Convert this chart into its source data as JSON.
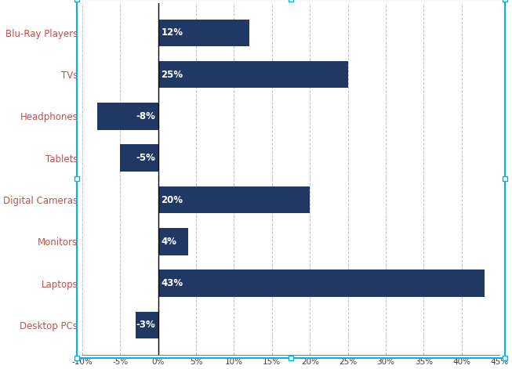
{
  "categories": [
    "Blu-Ray Players",
    "TVs",
    "Headphones",
    "Tablets",
    "Digital Cameras",
    "Monitors",
    "Laptops",
    "Desktop PCs"
  ],
  "values": [
    12,
    25,
    -8,
    -5,
    20,
    4,
    43,
    -3
  ],
  "bar_color": "#1F3864",
  "label_color": "#FFFFFF",
  "category_label_color": "#C0504D",
  "xlim": [
    -10,
    45
  ],
  "xticks": [
    -10,
    -5,
    0,
    5,
    10,
    15,
    20,
    25,
    30,
    35,
    40,
    45
  ],
  "xtick_labels": [
    "-10%",
    "-5%",
    "0%",
    "5%",
    "10%",
    "15%",
    "20%",
    "25%",
    "30%",
    "35%",
    "40%",
    "45%"
  ],
  "grid_color": "#C0C0C0",
  "border_color": "#00B0F0",
  "background_color": "#FFFFFF",
  "bar_height": 0.65,
  "label_fontsize": 8.5,
  "category_fontsize": 8.5,
  "tick_fontsize": 7.5
}
